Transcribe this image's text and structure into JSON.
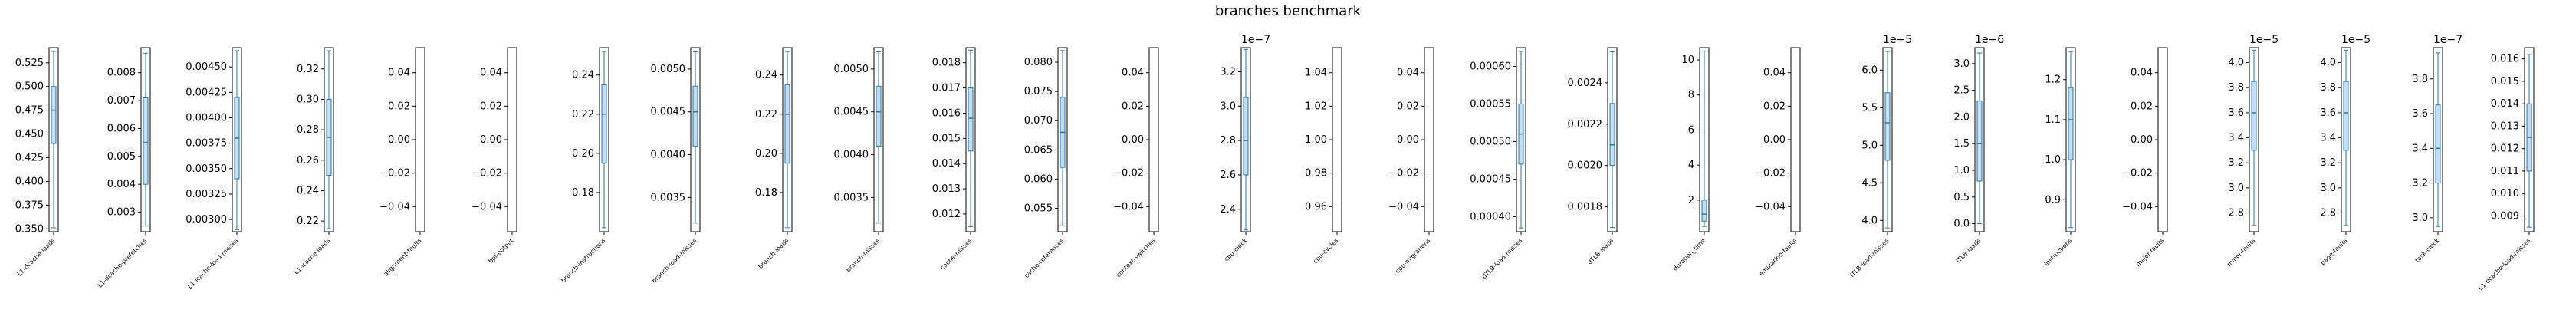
{
  "chart_data": {
    "type": "box",
    "title": "branches benchmark",
    "color": "#1f77b4",
    "panels": [
      {
        "label": "L1-dcache-loads",
        "ticks": [
          0.35,
          0.375,
          0.4,
          0.425,
          0.45,
          0.475,
          0.5,
          0.525
        ],
        "tick_labels": [
          "0.350",
          "0.375",
          "0.400",
          "0.425",
          "0.450",
          "0.475",
          "0.500",
          "0.525"
        ],
        "ylim": [
          0.347,
          0.541
        ],
        "box": {
          "whislo": 0.351,
          "q1": 0.44,
          "med": 0.475,
          "q3": 0.5,
          "whishi": 0.537
        }
      },
      {
        "label": "L1-dcache-prefetches",
        "ticks": [
          0.003,
          0.004,
          0.005,
          0.006,
          0.007,
          0.008
        ],
        "tick_labels": [
          "0.003",
          "0.004",
          "0.005",
          "0.006",
          "0.007",
          "0.008"
        ],
        "ylim": [
          0.0023,
          0.0089
        ],
        "box": {
          "whislo": 0.0025,
          "q1": 0.004,
          "med": 0.0055,
          "q3": 0.0071,
          "whishi": 0.0087
        }
      },
      {
        "label": "L1-icache-load-misses",
        "ticks": [
          0.003,
          0.00325,
          0.0035,
          0.00375,
          0.004,
          0.00425,
          0.0045
        ],
        "tick_labels": [
          "0.00300",
          "0.00325",
          "0.00350",
          "0.00375",
          "0.00400",
          "0.00425",
          "0.00450"
        ],
        "ylim": [
          0.00288,
          0.00469
        ],
        "box": {
          "whislo": 0.0029,
          "q1": 0.0034,
          "med": 0.0038,
          "q3": 0.0042,
          "whishi": 0.00466
        }
      },
      {
        "label": "L1-icache-loads",
        "ticks": [
          0.22,
          0.24,
          0.26,
          0.28,
          0.3,
          0.32
        ],
        "tick_labels": [
          "0.22",
          "0.24",
          "0.26",
          "0.28",
          "0.30",
          "0.32"
        ],
        "ylim": [
          0.213,
          0.334
        ],
        "box": {
          "whislo": 0.215,
          "q1": 0.25,
          "med": 0.275,
          "q3": 0.3,
          "whishi": 0.332
        }
      },
      {
        "label": "alignment-faults",
        "ticks": [
          -0.04,
          -0.02,
          0.0,
          0.02,
          0.04
        ],
        "tick_labels": [
          "−0.04",
          "−0.02",
          "0.00",
          "0.02",
          "0.04"
        ],
        "ylim": [
          -0.055,
          0.055
        ],
        "box": null
      },
      {
        "label": "bpf-output",
        "ticks": [
          -0.04,
          -0.02,
          0.0,
          0.02,
          0.04
        ],
        "tick_labels": [
          "−0.04",
          "−0.02",
          "0.00",
          "0.02",
          "0.04"
        ],
        "ylim": [
          -0.055,
          0.055
        ],
        "box": null
      },
      {
        "label": "branch-instructions",
        "ticks": [
          0.18,
          0.2,
          0.22,
          0.24
        ],
        "tick_labels": [
          "0.18",
          "0.20",
          "0.22",
          "0.24"
        ],
        "ylim": [
          0.16,
          0.254
        ],
        "box": {
          "whislo": 0.162,
          "q1": 0.195,
          "med": 0.22,
          "q3": 0.235,
          "whishi": 0.252
        }
      },
      {
        "label": "branch-load-misses",
        "ticks": [
          0.0035,
          0.004,
          0.0045,
          0.005
        ],
        "tick_labels": [
          "0.0035",
          "0.0040",
          "0.0045",
          "0.0050"
        ],
        "ylim": [
          0.0031,
          0.00525
        ],
        "box": {
          "whislo": 0.0032,
          "q1": 0.0041,
          "med": 0.0045,
          "q3": 0.0048,
          "whishi": 0.0052
        }
      },
      {
        "label": "branch-loads",
        "ticks": [
          0.18,
          0.2,
          0.22,
          0.24
        ],
        "tick_labels": [
          "0.18",
          "0.20",
          "0.22",
          "0.24"
        ],
        "ylim": [
          0.16,
          0.254
        ],
        "box": {
          "whislo": 0.162,
          "q1": 0.195,
          "med": 0.22,
          "q3": 0.235,
          "whishi": 0.252
        }
      },
      {
        "label": "branch-misses",
        "ticks": [
          0.0035,
          0.004,
          0.0045,
          0.005
        ],
        "tick_labels": [
          "0.0035",
          "0.0040",
          "0.0045",
          "0.0050"
        ],
        "ylim": [
          0.0031,
          0.00525
        ],
        "box": {
          "whislo": 0.0032,
          "q1": 0.0041,
          "med": 0.0045,
          "q3": 0.0048,
          "whishi": 0.0052
        }
      },
      {
        "label": "cache-misses",
        "ticks": [
          0.012,
          0.013,
          0.014,
          0.015,
          0.016,
          0.017,
          0.018
        ],
        "tick_labels": [
          "0.012",
          "0.013",
          "0.014",
          "0.015",
          "0.016",
          "0.017",
          "0.018"
        ],
        "ylim": [
          0.0113,
          0.0186
        ],
        "box": {
          "whislo": 0.0115,
          "q1": 0.0145,
          "med": 0.0158,
          "q3": 0.017,
          "whishi": 0.0185
        }
      },
      {
        "label": "cache-references",
        "ticks": [
          0.055,
          0.06,
          0.065,
          0.07,
          0.075,
          0.08
        ],
        "tick_labels": [
          "0.055",
          "0.060",
          "0.065",
          "0.070",
          "0.075",
          "0.080"
        ],
        "ylim": [
          0.051,
          0.0825
        ],
        "box": {
          "whislo": 0.052,
          "q1": 0.062,
          "med": 0.068,
          "q3": 0.074,
          "whishi": 0.082
        }
      },
      {
        "label": "context-switches",
        "ticks": [
          -0.04,
          -0.02,
          0.0,
          0.02,
          0.04
        ],
        "tick_labels": [
          "−0.04",
          "−0.02",
          "0.00",
          "0.02",
          "0.04"
        ],
        "ylim": [
          -0.055,
          0.055
        ],
        "box": null
      },
      {
        "label": "cpu-clock",
        "ticks": [
          2.4,
          2.6,
          2.8,
          3.0,
          3.2
        ],
        "tick_labels": [
          "2.4",
          "2.6",
          "2.8",
          "3.0",
          "3.2"
        ],
        "ylim": [
          2.27,
          3.34
        ],
        "offset": "1e−7",
        "box": {
          "whislo": 2.28,
          "q1": 2.6,
          "med": 2.8,
          "q3": 3.05,
          "whishi": 3.33
        }
      },
      {
        "label": "cpu-cycles",
        "ticks": [
          0.96,
          0.98,
          1.0,
          1.02,
          1.04
        ],
        "tick_labels": [
          "0.96",
          "0.98",
          "1.00",
          "1.02",
          "1.04"
        ],
        "ylim": [
          0.945,
          1.055
        ],
        "box": null
      },
      {
        "label": "cpu-migrations",
        "ticks": [
          -0.04,
          -0.02,
          0.0,
          0.02,
          0.04
        ],
        "tick_labels": [
          "−0.04",
          "−0.02",
          "0.00",
          "0.02",
          "0.04"
        ],
        "ylim": [
          -0.055,
          0.055
        ],
        "box": null
      },
      {
        "label": "dTLB-load-misses",
        "ticks": [
          0.0004,
          0.00045,
          0.0005,
          0.00055,
          0.0006
        ],
        "tick_labels": [
          "0.00040",
          "0.00045",
          "0.00050",
          "0.00055",
          "0.00060"
        ],
        "ylim": [
          0.00038,
          0.000625
        ],
        "box": {
          "whislo": 0.000385,
          "q1": 0.00047,
          "med": 0.00051,
          "q3": 0.00055,
          "whishi": 0.00062
        }
      },
      {
        "label": "dTLB-loads",
        "ticks": [
          0.0018,
          0.002,
          0.0022,
          0.0024
        ],
        "tick_labels": [
          "0.0018",
          "0.0020",
          "0.0022",
          "0.0024"
        ],
        "ylim": [
          0.00168,
          0.00257
        ],
        "box": {
          "whislo": 0.0017,
          "q1": 0.002,
          "med": 0.0021,
          "q3": 0.0023,
          "whishi": 0.00255
        }
      },
      {
        "label": "duration_time",
        "ticks": [
          2,
          4,
          6,
          8,
          10
        ],
        "tick_labels": [
          "2",
          "4",
          "6",
          "8",
          "10"
        ],
        "ylim": [
          0.2,
          10.7
        ],
        "box": {
          "whislo": 0.5,
          "q1": 0.8,
          "med": 1.2,
          "q3": 2.0,
          "whishi": 10.5
        }
      },
      {
        "label": "emulation-faults",
        "ticks": [
          -0.04,
          -0.02,
          0.0,
          0.02,
          0.04
        ],
        "tick_labels": [
          "−0.04",
          "−0.02",
          "0.00",
          "0.02",
          "0.04"
        ],
        "ylim": [
          -0.055,
          0.055
        ],
        "box": null
      },
      {
        "label": "iTLB-load-misses",
        "ticks": [
          4.0,
          4.5,
          5.0,
          5.5,
          6.0
        ],
        "tick_labels": [
          "4.0",
          "4.5",
          "5.0",
          "5.5",
          "6.0"
        ],
        "ylim": [
          3.85,
          6.3
        ],
        "offset": "1e−5",
        "box": {
          "whislo": 3.9,
          "q1": 4.8,
          "med": 5.3,
          "q3": 5.7,
          "whishi": 6.25
        }
      },
      {
        "label": "iTLB-loads",
        "ticks": [
          0.0,
          0.5,
          1.0,
          1.5,
          2.0,
          2.5,
          3.0
        ],
        "tick_labels": [
          "0.0",
          "0.5",
          "1.0",
          "1.5",
          "2.0",
          "2.5",
          "3.0"
        ],
        "ylim": [
          -0.15,
          3.3
        ],
        "offset": "1e−6",
        "box": {
          "whislo": 0.0,
          "q1": 0.8,
          "med": 1.5,
          "q3": 2.3,
          "whishi": 3.2
        }
      },
      {
        "label": "instructions",
        "ticks": [
          0.9,
          1.0,
          1.1,
          1.2
        ],
        "tick_labels": [
          "0.9",
          "1.0",
          "1.1",
          "1.2"
        ],
        "ylim": [
          0.82,
          1.28
        ],
        "box": {
          "whislo": 0.83,
          "q1": 1.0,
          "med": 1.1,
          "q3": 1.18,
          "whishi": 1.27
        }
      },
      {
        "label": "major-faults",
        "ticks": [
          -0.04,
          -0.02,
          0.0,
          0.02,
          0.04
        ],
        "tick_labels": [
          "−0.04",
          "−0.02",
          "0.00",
          "0.02",
          "0.04"
        ],
        "ylim": [
          -0.055,
          0.055
        ],
        "box": null
      },
      {
        "label": "minor-faults",
        "ticks": [
          2.8,
          3.0,
          3.2,
          3.4,
          3.6,
          3.8,
          4.0
        ],
        "tick_labels": [
          "2.8",
          "3.0",
          "3.2",
          "3.4",
          "3.6",
          "3.8",
          "4.0"
        ],
        "ylim": [
          2.65,
          4.12
        ],
        "offset": "1e−5",
        "box": {
          "whislo": 2.7,
          "q1": 3.3,
          "med": 3.6,
          "q3": 3.85,
          "whishi": 4.1
        }
      },
      {
        "label": "page-faults",
        "ticks": [
          2.8,
          3.0,
          3.2,
          3.4,
          3.6,
          3.8,
          4.0
        ],
        "tick_labels": [
          "2.8",
          "3.0",
          "3.2",
          "3.4",
          "3.6",
          "3.8",
          "4.0"
        ],
        "ylim": [
          2.65,
          4.12
        ],
        "offset": "1e−5",
        "box": {
          "whislo": 2.7,
          "q1": 3.3,
          "med": 3.6,
          "q3": 3.85,
          "whishi": 4.1
        }
      },
      {
        "label": "task-clock",
        "ticks": [
          3.0,
          3.2,
          3.4,
          3.6,
          3.8
        ],
        "tick_labels": [
          "3.0",
          "3.2",
          "3.4",
          "3.6",
          "3.8"
        ],
        "ylim": [
          2.92,
          3.98
        ],
        "offset": "1e−7",
        "box": {
          "whislo": 2.95,
          "q1": 3.2,
          "med": 3.4,
          "q3": 3.65,
          "whishi": 3.95
        }
      },
      {
        "label": "L1-dcache-load-misses",
        "ticks": [
          0.009,
          0.01,
          0.011,
          0.012,
          0.013,
          0.014,
          0.015,
          0.016
        ],
        "tick_labels": [
          "0.009",
          "0.010",
          "0.011",
          "0.012",
          "0.013",
          "0.014",
          "0.015",
          "0.016"
        ],
        "ylim": [
          0.0083,
          0.0165
        ],
        "box": {
          "whislo": 0.0085,
          "q1": 0.011,
          "med": 0.0125,
          "q3": 0.014,
          "whishi": 0.0162
        }
      }
    ]
  }
}
